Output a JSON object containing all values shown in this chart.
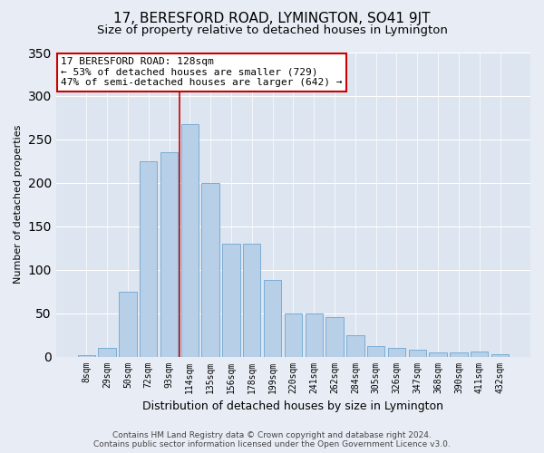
{
  "title": "17, BERESFORD ROAD, LYMINGTON, SO41 9JT",
  "subtitle": "Size of property relative to detached houses in Lymington",
  "xlabel": "Distribution of detached houses by size in Lymington",
  "ylabel": "Number of detached properties",
  "categories": [
    "8sqm",
    "29sqm",
    "50sqm",
    "72sqm",
    "93sqm",
    "114sqm",
    "135sqm",
    "156sqm",
    "178sqm",
    "199sqm",
    "220sqm",
    "241sqm",
    "262sqm",
    "284sqm",
    "305sqm",
    "326sqm",
    "347sqm",
    "368sqm",
    "390sqm",
    "411sqm",
    "432sqm"
  ],
  "values": [
    2,
    10,
    75,
    225,
    235,
    268,
    200,
    130,
    130,
    88,
    50,
    50,
    45,
    25,
    12,
    10,
    8,
    5,
    5,
    6,
    3
  ],
  "bar_color": "#b8cfe8",
  "bar_edge_color": "#7aadd4",
  "vline_x_index": 5,
  "vline_color": "#cc0000",
  "annotation_text": "17 BERESFORD ROAD: 128sqm\n← 53% of detached houses are smaller (729)\n47% of semi-detached houses are larger (642) →",
  "annotation_box_color": "white",
  "annotation_box_edge_color": "#cc0000",
  "background_color": "#e8edf5",
  "plot_bg_color": "#dce5f0",
  "footer_line1": "Contains HM Land Registry data © Crown copyright and database right 2024.",
  "footer_line2": "Contains public sector information licensed under the Open Government Licence v3.0.",
  "ylim": [
    0,
    350
  ],
  "title_fontsize": 11,
  "subtitle_fontsize": 9.5,
  "xlabel_fontsize": 9,
  "ylabel_fontsize": 8,
  "tick_fontsize": 7,
  "footer_fontsize": 6.5
}
